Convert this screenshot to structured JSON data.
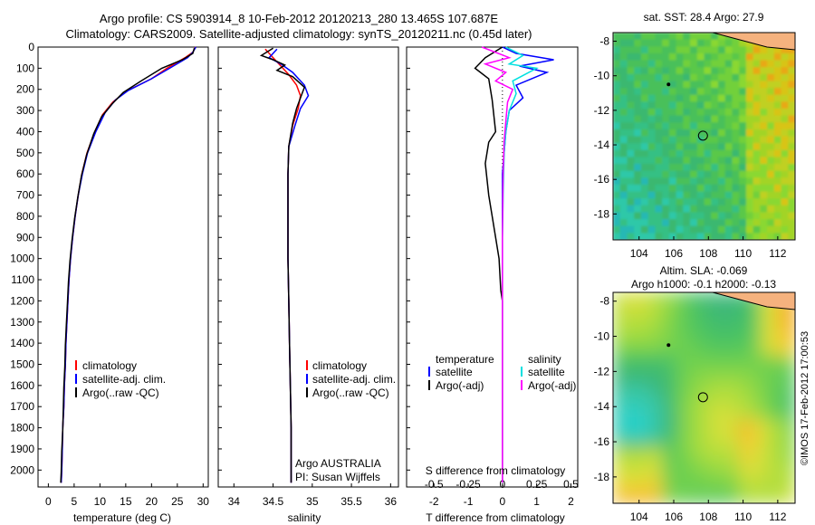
{
  "title_line1": "Argo profile: CS 5903914_8 10-Feb-2012 20120213_280 13.465S 107.687E",
  "title_line2": "Climatology: CARS2009. Satellite-adjusted climatology: synTS_20120211.nc (0.45d later)",
  "colors": {
    "climatology": "#ff0000",
    "satellite": "#0000ff",
    "argo": "#000000",
    "argo_adj_salinity": "#ff00ff",
    "satellite_salinity": "#00e0e0"
  },
  "chart_data": [
    {
      "id": "temperature",
      "type": "line",
      "xlabel": "temperature (deg C)",
      "xlim": [
        -2,
        31
      ],
      "ylim": [
        2080,
        0
      ],
      "y_inverted": true,
      "xticks": [
        0,
        5,
        10,
        15,
        20,
        25,
        30
      ],
      "yticks": [
        0,
        100,
        200,
        300,
        400,
        500,
        600,
        700,
        800,
        900,
        1000,
        1100,
        1200,
        1300,
        1400,
        1500,
        1600,
        1700,
        1800,
        1900,
        2000
      ],
      "legend": [
        "climatology",
        "satellite-adj. clim.",
        "Argo(..raw -QC)"
      ],
      "series": [
        {
          "name": "climatology",
          "color": "#ff0000",
          "points": [
            [
              28.5,
              0
            ],
            [
              28,
              25
            ],
            [
              26.5,
              50
            ],
            [
              23,
              100
            ],
            [
              20,
              150
            ],
            [
              15,
              210
            ],
            [
              12.5,
              260
            ],
            [
              10.5,
              320
            ],
            [
              9,
              400
            ],
            [
              7.5,
              500
            ],
            [
              6.5,
              600
            ],
            [
              5.8,
              700
            ],
            [
              5.2,
              800
            ],
            [
              4.7,
              900
            ],
            [
              4.3,
              1000
            ],
            [
              4,
              1100
            ],
            [
              3.8,
              1200
            ],
            [
              3.6,
              1300
            ],
            [
              3.4,
              1400
            ],
            [
              3.3,
              1500
            ],
            [
              3.1,
              1600
            ],
            [
              3,
              1700
            ],
            [
              2.8,
              1800
            ],
            [
              2.7,
              1900
            ],
            [
              2.6,
              2000
            ],
            [
              2.5,
              2060
            ]
          ]
        },
        {
          "name": "satellite-adj. clim.",
          "color": "#0000ff",
          "points": [
            [
              28.6,
              0
            ],
            [
              28,
              25
            ],
            [
              27,
              50
            ],
            [
              23.5,
              100
            ],
            [
              20,
              150
            ],
            [
              15.5,
              205
            ],
            [
              13,
              250
            ],
            [
              11,
              310
            ],
            [
              9.2,
              400
            ],
            [
              7.6,
              500
            ],
            [
              6.6,
              600
            ],
            [
              5.8,
              700
            ],
            [
              5.2,
              800
            ],
            [
              4.7,
              900
            ],
            [
              4.3,
              1000
            ],
            [
              4,
              1100
            ],
            [
              3.8,
              1200
            ],
            [
              3.6,
              1300
            ],
            [
              3.4,
              1400
            ],
            [
              3.3,
              1500
            ],
            [
              3.1,
              1600
            ],
            [
              3,
              1700
            ],
            [
              2.8,
              1800
            ],
            [
              2.7,
              1900
            ],
            [
              2.6,
              2000
            ],
            [
              2.5,
              2060
            ]
          ]
        },
        {
          "name": "Argo(..raw -QC)",
          "color": "#000000",
          "points": [
            [
              28.3,
              5
            ],
            [
              28,
              30
            ],
            [
              26,
              60
            ],
            [
              22,
              100
            ],
            [
              18,
              160
            ],
            [
              14.5,
              215
            ],
            [
              12.3,
              270
            ],
            [
              10.3,
              330
            ],
            [
              8.8,
              410
            ],
            [
              7.4,
              510
            ],
            [
              6.4,
              610
            ],
            [
              5.7,
              710
            ],
            [
              5.1,
              810
            ],
            [
              4.6,
              910
            ],
            [
              4.2,
              1010
            ],
            [
              3.9,
              1110
            ],
            [
              3.7,
              1210
            ],
            [
              3.5,
              1310
            ],
            [
              3.3,
              1410
            ],
            [
              3.2,
              1510
            ],
            [
              3,
              1610
            ],
            [
              2.9,
              1710
            ],
            [
              2.8,
              1810
            ],
            [
              2.6,
              1910
            ],
            [
              2.5,
              2010
            ],
            [
              2.4,
              2060
            ]
          ]
        }
      ]
    },
    {
      "id": "salinity",
      "type": "line",
      "xlabel": "salinity",
      "xlim": [
        33.8,
        36.1
      ],
      "ylim": [
        2080,
        0
      ],
      "y_inverted": true,
      "xticks": [
        34,
        34.5,
        35,
        35.5,
        36
      ],
      "legend": [
        "climatology",
        "satellite-adj. clim.",
        "Argo(..raw -QC)"
      ],
      "annotations": [
        "Argo AUSTRALIA",
        "PI: Susan Wijffels"
      ],
      "series": [
        {
          "name": "climatology",
          "color": "#ff0000",
          "points": [
            [
              34.4,
              10
            ],
            [
              34.5,
              50
            ],
            [
              34.6,
              90
            ],
            [
              34.7,
              130
            ],
            [
              34.8,
              180
            ],
            [
              34.85,
              230
            ],
            [
              34.82,
              290
            ],
            [
              34.75,
              370
            ],
            [
              34.7,
              470
            ],
            [
              34.69,
              600
            ],
            [
              34.69,
              800
            ],
            [
              34.69,
              1000
            ],
            [
              34.7,
              1200
            ],
            [
              34.71,
              1400
            ],
            [
              34.72,
              1600
            ],
            [
              34.73,
              1800
            ],
            [
              34.73,
              2000
            ],
            [
              34.73,
              2060
            ]
          ]
        },
        {
          "name": "satellite-adj. clim.",
          "color": "#0000ff",
          "points": [
            [
              34.55,
              10
            ],
            [
              34.45,
              50
            ],
            [
              34.6,
              80
            ],
            [
              34.75,
              120
            ],
            [
              34.9,
              180
            ],
            [
              34.95,
              230
            ],
            [
              34.85,
              290
            ],
            [
              34.78,
              370
            ],
            [
              34.7,
              470
            ],
            [
              34.69,
              600
            ],
            [
              34.69,
              800
            ],
            [
              34.69,
              1000
            ],
            [
              34.7,
              1200
            ],
            [
              34.71,
              1400
            ],
            [
              34.72,
              1600
            ],
            [
              34.73,
              1800
            ],
            [
              34.73,
              2000
            ],
            [
              34.73,
              2060
            ]
          ]
        },
        {
          "name": "Argo(..raw -QC)",
          "color": "#000000",
          "points": [
            [
              34.5,
              5
            ],
            [
              34.35,
              40
            ],
            [
              34.5,
              60
            ],
            [
              34.65,
              85
            ],
            [
              34.55,
              110
            ],
            [
              34.75,
              140
            ],
            [
              34.9,
              190
            ],
            [
              34.85,
              240
            ],
            [
              34.8,
              290
            ],
            [
              34.75,
              360
            ],
            [
              34.7,
              470
            ],
            [
              34.69,
              600
            ],
            [
              34.69,
              800
            ],
            [
              34.69,
              1000
            ],
            [
              34.7,
              1200
            ],
            [
              34.71,
              1400
            ],
            [
              34.72,
              1600
            ],
            [
              34.73,
              1800
            ],
            [
              34.73,
              2000
            ],
            [
              34.73,
              2060
            ]
          ]
        }
      ]
    },
    {
      "id": "differences",
      "type": "line",
      "xlabel_top": "S difference from climatology",
      "xlabel_bottom": "T difference from climatology",
      "xlim": [
        -2.8,
        2.2
      ],
      "ylim": [
        2080,
        0
      ],
      "y_inverted": true,
      "xticks_S": [
        "-0.5",
        "-0.25",
        "0",
        "0.25",
        "0.5"
      ],
      "xticks_T": [
        "-2",
        "-1",
        "0",
        "1",
        "2"
      ],
      "legend_left_title": "temperature",
      "legend_right_title": "salinity",
      "legend": [
        "satellite",
        "Argo(-adj)",
        "satellite",
        "Argo(-adj)"
      ],
      "series": [
        {
          "name": "satellite",
          "group": "temperature",
          "color": "#0000ff",
          "points": [
            [
              0,
              0
            ],
            [
              0.4,
              30
            ],
            [
              1.5,
              60
            ],
            [
              0.5,
              90
            ],
            [
              1.3,
              120
            ],
            [
              0.4,
              180
            ],
            [
              0.6,
              240
            ],
            [
              0.2,
              300
            ],
            [
              0.1,
              400
            ],
            [
              0,
              600
            ],
            [
              0,
              900
            ],
            [
              0,
              1200
            ],
            [
              0,
              1500
            ],
            [
              0,
              1800
            ],
            [
              0,
              2060
            ]
          ]
        },
        {
          "name": "Argo(-adj)",
          "group": "temperature",
          "color": "#000000",
          "points": [
            [
              0,
              0
            ],
            [
              -0.5,
              50
            ],
            [
              -0.8,
              100
            ],
            [
              -0.4,
              150
            ],
            [
              -0.3,
              250
            ],
            [
              -0.2,
              400
            ],
            [
              -0.4,
              450
            ],
            [
              -0.5,
              550
            ],
            [
              -0.4,
              700
            ],
            [
              -0.3,
              800
            ],
            [
              -0.2,
              900
            ],
            [
              -0.1,
              1000
            ],
            [
              -0.05,
              1150
            ],
            [
              0,
              1200
            ],
            [
              0,
              1400
            ],
            [
              0,
              1600
            ],
            [
              0,
              1800
            ],
            [
              0,
              2060
            ]
          ]
        },
        {
          "name": "satellite",
          "group": "salinity",
          "color": "#00e0e0",
          "points": [
            [
              0.1,
              0
            ],
            [
              0.6,
              40
            ],
            [
              0.2,
              80
            ],
            [
              1,
              100
            ],
            [
              0.3,
              160
            ],
            [
              0.4,
              220
            ],
            [
              0.2,
              300
            ],
            [
              0.1,
              400
            ],
            [
              0.05,
              500
            ],
            [
              0.02,
              700
            ],
            [
              0,
              900
            ],
            [
              0,
              1200
            ],
            [
              0,
              1500
            ],
            [
              0,
              1800
            ],
            [
              0,
              2060
            ]
          ]
        },
        {
          "name": "Argo(-adj)",
          "group": "salinity",
          "color": "#ff00ff",
          "points": [
            [
              -0.6,
              0
            ],
            [
              0.2,
              50
            ],
            [
              -0.5,
              80
            ],
            [
              0.1,
              120
            ],
            [
              -0.2,
              160
            ],
            [
              0.3,
              200
            ],
            [
              0.15,
              260
            ],
            [
              0.1,
              350
            ],
            [
              0.05,
              450
            ],
            [
              0.02,
              600
            ],
            [
              0,
              900
            ],
            [
              0,
              1200
            ],
            [
              0,
              1500
            ],
            [
              0,
              1800
            ],
            [
              0,
              2060
            ]
          ]
        }
      ]
    },
    {
      "id": "sst_map",
      "type": "heatmap",
      "title": "sat. SST: 28.4  Argo: 27.9",
      "xlim": [
        102.5,
        113
      ],
      "ylim": [
        -19.5,
        -7.5
      ],
      "xticks": [
        104,
        106,
        108,
        110,
        112
      ],
      "yticks": [
        -8,
        -10,
        -12,
        -14,
        -16,
        -18
      ]
    },
    {
      "id": "sla_map",
      "type": "heatmap",
      "title_line1": "Altim. SLA: -0.069",
      "title_line2": "Argo h1000: -0.1  h2000: -0.13",
      "xlim": [
        102.5,
        113
      ],
      "ylim": [
        -19.5,
        -7.5
      ],
      "xticks": [
        104,
        106,
        108,
        110,
        112
      ],
      "yticks": [
        -8,
        -10,
        -12,
        -14,
        -16,
        -18
      ]
    }
  ],
  "side_label": "©IMOS 17-Feb-2012 17:00:53"
}
